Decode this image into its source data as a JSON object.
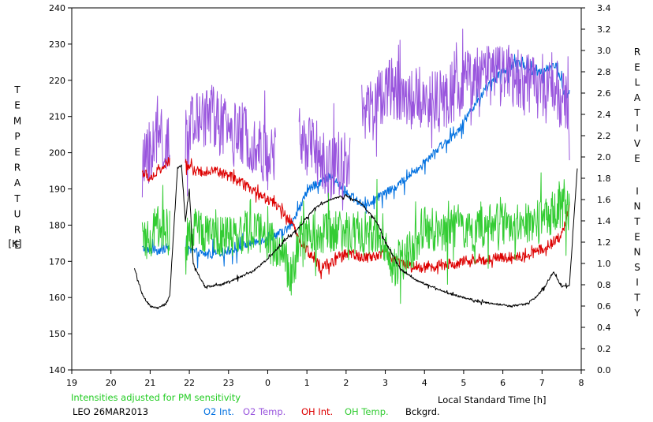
{
  "chart_data": {
    "type": "line",
    "title": "",
    "xlabel": "Local Standard Time [h]",
    "ylabel_left": "TEMPERATURE",
    "ylabel_left_unit": "[K]",
    "ylabel_right": "RELATIVE INTENSITY",
    "x_ticks": [
      "19",
      "20",
      "21",
      "22",
      "23",
      "0",
      "1",
      "2",
      "3",
      "4",
      "5",
      "6",
      "7",
      "8"
    ],
    "x_range": [
      19,
      32
    ],
    "y_left_range": [
      140,
      240
    ],
    "y_left_ticks": [
      "140",
      "150",
      "160",
      "170",
      "180",
      "190",
      "200",
      "210",
      "220",
      "230",
      "240"
    ],
    "y_right_range": [
      0.0,
      3.4
    ],
    "y_right_ticks": [
      "0.0",
      "0.2",
      "0.4",
      "0.6",
      "0.8",
      "1.0",
      "1.2",
      "1.4",
      "1.6",
      "1.8",
      "2.0",
      "2.2",
      "2.4",
      "2.6",
      "2.8",
      "3.0",
      "3.2",
      "3.4"
    ],
    "grid": false,
    "note": "Intensities adjusted for PM sensitivity",
    "station_date": "LEO 26MAR2013",
    "series": [
      {
        "name": "O2 Int.",
        "color": "#0070e0",
        "axis": "right",
        "gaps": [
          [
            21.5,
            21.9
          ]
        ],
        "points": [
          [
            20.8,
            1.14
          ],
          [
            21.2,
            1.12
          ],
          [
            21.5,
            1.16
          ],
          [
            22.0,
            1.12
          ],
          [
            22.5,
            1.08
          ],
          [
            23.0,
            1.12
          ],
          [
            23.5,
            1.18
          ],
          [
            24.0,
            1.24
          ],
          [
            24.4,
            1.3
          ],
          [
            24.6,
            1.36
          ],
          [
            24.8,
            1.5
          ],
          [
            25.0,
            1.68
          ],
          [
            25.3,
            1.76
          ],
          [
            25.6,
            1.82
          ],
          [
            25.9,
            1.72
          ],
          [
            26.2,
            1.6
          ],
          [
            26.5,
            1.55
          ],
          [
            26.8,
            1.62
          ],
          [
            27.2,
            1.7
          ],
          [
            27.6,
            1.82
          ],
          [
            28.0,
            1.96
          ],
          [
            28.4,
            2.1
          ],
          [
            28.8,
            2.22
          ],
          [
            29.2,
            2.45
          ],
          [
            29.6,
            2.66
          ],
          [
            30.0,
            2.8
          ],
          [
            30.4,
            2.9
          ],
          [
            30.8,
            2.78
          ],
          [
            31.2,
            2.85
          ],
          [
            31.4,
            2.85
          ],
          [
            31.6,
            2.55
          ],
          [
            31.7,
            2.6
          ]
        ]
      },
      {
        "name": "O2 Temp.",
        "color": "#9955dd",
        "axis": "left",
        "gaps": [
          [
            21.5,
            21.9
          ],
          [
            24.2,
            24.8
          ],
          [
            26.1,
            26.4
          ]
        ],
        "points": [
          [
            20.8,
            195
          ],
          [
            21.2,
            205
          ],
          [
            21.5,
            200
          ],
          [
            22.0,
            205
          ],
          [
            22.5,
            212
          ],
          [
            23.0,
            205
          ],
          [
            23.5,
            205
          ],
          [
            24.0,
            198
          ],
          [
            24.2,
            200
          ],
          [
            24.8,
            205
          ],
          [
            25.2,
            200
          ],
          [
            25.6,
            195
          ],
          [
            26.1,
            198
          ],
          [
            26.4,
            208
          ],
          [
            26.8,
            215
          ],
          [
            27.2,
            218
          ],
          [
            27.6,
            215
          ],
          [
            28.0,
            215
          ],
          [
            28.4,
            214
          ],
          [
            28.8,
            218
          ],
          [
            29.2,
            220
          ],
          [
            29.6,
            222
          ],
          [
            30.0,
            222
          ],
          [
            30.4,
            220
          ],
          [
            30.8,
            218
          ],
          [
            31.2,
            220
          ],
          [
            31.5,
            215
          ],
          [
            31.7,
            212
          ]
        ]
      },
      {
        "name": "OH Int.",
        "color": "#dd0000",
        "axis": "right",
        "gaps": [
          [
            21.5,
            21.9
          ]
        ],
        "points": [
          [
            20.8,
            1.86
          ],
          [
            21.0,
            1.8
          ],
          [
            21.5,
            1.96
          ],
          [
            21.9,
            1.94
          ],
          [
            22.2,
            1.86
          ],
          [
            22.6,
            1.88
          ],
          [
            23.0,
            1.82
          ],
          [
            23.4,
            1.74
          ],
          [
            23.8,
            1.64
          ],
          [
            24.2,
            1.56
          ],
          [
            24.6,
            1.38
          ],
          [
            24.8,
            1.22
          ],
          [
            25.1,
            1.08
          ],
          [
            25.4,
            0.96
          ],
          [
            25.7,
            1.02
          ],
          [
            26.0,
            1.1
          ],
          [
            26.4,
            1.06
          ],
          [
            26.8,
            1.08
          ],
          [
            27.0,
            1.12
          ],
          [
            27.2,
            1.04
          ],
          [
            27.6,
            0.98
          ],
          [
            28.0,
            0.96
          ],
          [
            28.4,
            0.98
          ],
          [
            28.8,
            1.0
          ],
          [
            29.2,
            1.04
          ],
          [
            29.6,
            1.04
          ],
          [
            30.0,
            1.06
          ],
          [
            30.4,
            1.06
          ],
          [
            30.8,
            1.1
          ],
          [
            31.2,
            1.18
          ],
          [
            31.5,
            1.26
          ],
          [
            31.7,
            1.54
          ]
        ]
      },
      {
        "name": "OH Temp.",
        "color": "#33cc33",
        "axis": "left",
        "gaps": [
          [
            21.5,
            21.9
          ]
        ],
        "points": [
          [
            20.8,
            174
          ],
          [
            21.2,
            180
          ],
          [
            21.5,
            178
          ],
          [
            21.9,
            176
          ],
          [
            22.2,
            178
          ],
          [
            22.6,
            178
          ],
          [
            23.0,
            177
          ],
          [
            23.4,
            178
          ],
          [
            23.8,
            178
          ],
          [
            24.0,
            176
          ],
          [
            24.4,
            172
          ],
          [
            24.6,
            165
          ],
          [
            24.8,
            175
          ],
          [
            25.2,
            178
          ],
          [
            25.6,
            178
          ],
          [
            26.0,
            178
          ],
          [
            26.4,
            178
          ],
          [
            26.8,
            178
          ],
          [
            27.0,
            175
          ],
          [
            27.2,
            168
          ],
          [
            27.6,
            172
          ],
          [
            28.0,
            180
          ],
          [
            28.4,
            178
          ],
          [
            28.8,
            180
          ],
          [
            29.2,
            178
          ],
          [
            29.6,
            180
          ],
          [
            30.0,
            180
          ],
          [
            30.4,
            182
          ],
          [
            30.8,
            180
          ],
          [
            31.2,
            183
          ],
          [
            31.5,
            185
          ],
          [
            31.7,
            184
          ]
        ]
      },
      {
        "name": "Bckgrd.",
        "color": "#000000",
        "axis": "right",
        "points": [
          [
            20.6,
            0.96
          ],
          [
            20.8,
            0.7
          ],
          [
            21.0,
            0.6
          ],
          [
            21.2,
            0.58
          ],
          [
            21.4,
            0.62
          ],
          [
            21.5,
            0.7
          ],
          [
            21.7,
            1.9
          ],
          [
            21.8,
            1.92
          ],
          [
            21.9,
            1.4
          ],
          [
            22.0,
            1.7
          ],
          [
            22.1,
            1.0
          ],
          [
            22.2,
            0.92
          ],
          [
            22.4,
            0.78
          ],
          [
            22.8,
            0.8
          ],
          [
            23.2,
            0.86
          ],
          [
            23.6,
            0.92
          ],
          [
            24.0,
            1.04
          ],
          [
            24.4,
            1.2
          ],
          [
            24.8,
            1.34
          ],
          [
            25.2,
            1.52
          ],
          [
            25.6,
            1.6
          ],
          [
            26.0,
            1.64
          ],
          [
            26.4,
            1.56
          ],
          [
            26.8,
            1.38
          ],
          [
            27.0,
            1.2
          ],
          [
            27.4,
            0.94
          ],
          [
            27.8,
            0.84
          ],
          [
            28.2,
            0.78
          ],
          [
            28.6,
            0.72
          ],
          [
            29.0,
            0.68
          ],
          [
            29.4,
            0.64
          ],
          [
            29.8,
            0.62
          ],
          [
            30.2,
            0.6
          ],
          [
            30.6,
            0.62
          ],
          [
            30.9,
            0.7
          ],
          [
            31.1,
            0.8
          ],
          [
            31.3,
            0.92
          ],
          [
            31.5,
            0.78
          ],
          [
            31.7,
            0.8
          ],
          [
            31.9,
            1.9
          ]
        ]
      }
    ]
  }
}
